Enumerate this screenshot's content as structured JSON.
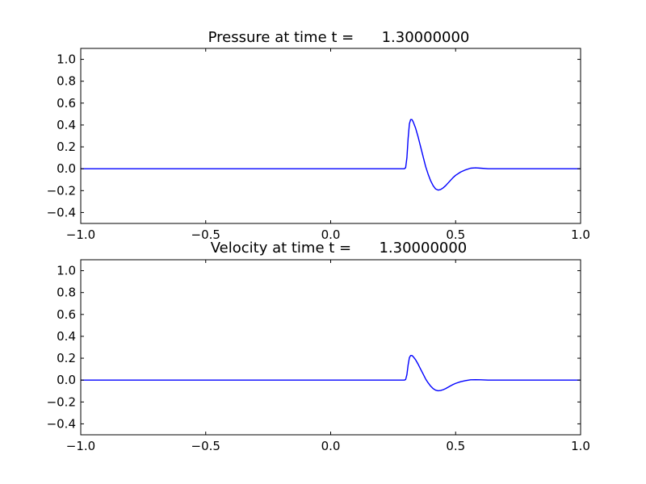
{
  "chart_data": [
    {
      "type": "line",
      "title": "Pressure at time t =      1.30000000",
      "xlabel": "",
      "ylabel": "",
      "xlim": [
        -1.0,
        1.0
      ],
      "ylim": [
        -0.5,
        1.1
      ],
      "xticks": [
        -1.0,
        -0.5,
        0.0,
        0.5,
        1.0
      ],
      "xtick_labels": [
        "−1.0",
        "−0.5",
        "0.0",
        "0.5",
        "1.0"
      ],
      "yticks": [
        -0.4,
        -0.2,
        0.0,
        0.2,
        0.4,
        0.6,
        0.8,
        1.0
      ],
      "ytick_labels": [
        "−0.4",
        "−0.2",
        "0.0",
        "0.2",
        "0.4",
        "0.6",
        "0.8",
        "1.0"
      ],
      "grid": false,
      "color": "#0000ff",
      "x": [
        -1.0,
        0.0,
        0.2,
        0.29,
        0.295,
        0.3,
        0.305,
        0.31,
        0.315,
        0.32,
        0.325,
        0.33,
        0.34,
        0.35,
        0.36,
        0.37,
        0.38,
        0.39,
        0.4,
        0.41,
        0.42,
        0.43,
        0.44,
        0.45,
        0.46,
        0.47,
        0.48,
        0.49,
        0.5,
        0.52,
        0.54,
        0.56,
        0.58,
        0.6,
        0.63,
        0.66,
        0.7,
        0.8,
        1.0
      ],
      "y": [
        0.0,
        0.0,
        0.0,
        0.0,
        0.0,
        0.01,
        0.1,
        0.28,
        0.41,
        0.45,
        0.45,
        0.43,
        0.37,
        0.29,
        0.2,
        0.11,
        0.02,
        -0.05,
        -0.11,
        -0.155,
        -0.185,
        -0.195,
        -0.19,
        -0.175,
        -0.155,
        -0.13,
        -0.105,
        -0.08,
        -0.06,
        -0.03,
        -0.01,
        0.005,
        0.008,
        0.005,
        0.0,
        0.0,
        0.0,
        0.0,
        0.0
      ]
    },
    {
      "type": "line",
      "title": "Velocity at time t =      1.30000000",
      "xlabel": "",
      "ylabel": "",
      "xlim": [
        -1.0,
        1.0
      ],
      "ylim": [
        -0.5,
        1.1
      ],
      "xticks": [
        -1.0,
        -0.5,
        0.0,
        0.5,
        1.0
      ],
      "xtick_labels": [
        "−1.0",
        "−0.5",
        "0.0",
        "0.5",
        "1.0"
      ],
      "yticks": [
        -0.4,
        -0.2,
        0.0,
        0.2,
        0.4,
        0.6,
        0.8,
        1.0
      ],
      "ytick_labels": [
        "−0.4",
        "−0.2",
        "0.0",
        "0.2",
        "0.4",
        "0.6",
        "0.8",
        "1.0"
      ],
      "grid": false,
      "color": "#0000ff",
      "x": [
        -1.0,
        0.0,
        0.2,
        0.29,
        0.295,
        0.3,
        0.305,
        0.31,
        0.315,
        0.32,
        0.325,
        0.33,
        0.34,
        0.35,
        0.36,
        0.37,
        0.38,
        0.39,
        0.4,
        0.41,
        0.42,
        0.43,
        0.44,
        0.45,
        0.46,
        0.47,
        0.48,
        0.49,
        0.5,
        0.52,
        0.54,
        0.56,
        0.58,
        0.6,
        0.63,
        0.66,
        0.7,
        0.8,
        1.0
      ],
      "y": [
        0.0,
        0.0,
        0.0,
        0.0,
        0.0,
        0.005,
        0.05,
        0.14,
        0.205,
        0.225,
        0.225,
        0.215,
        0.185,
        0.145,
        0.1,
        0.055,
        0.01,
        -0.025,
        -0.055,
        -0.078,
        -0.092,
        -0.098,
        -0.095,
        -0.088,
        -0.078,
        -0.065,
        -0.052,
        -0.04,
        -0.03,
        -0.015,
        -0.005,
        0.003,
        0.004,
        0.003,
        0.0,
        0.0,
        0.0,
        0.0,
        0.0
      ]
    }
  ]
}
